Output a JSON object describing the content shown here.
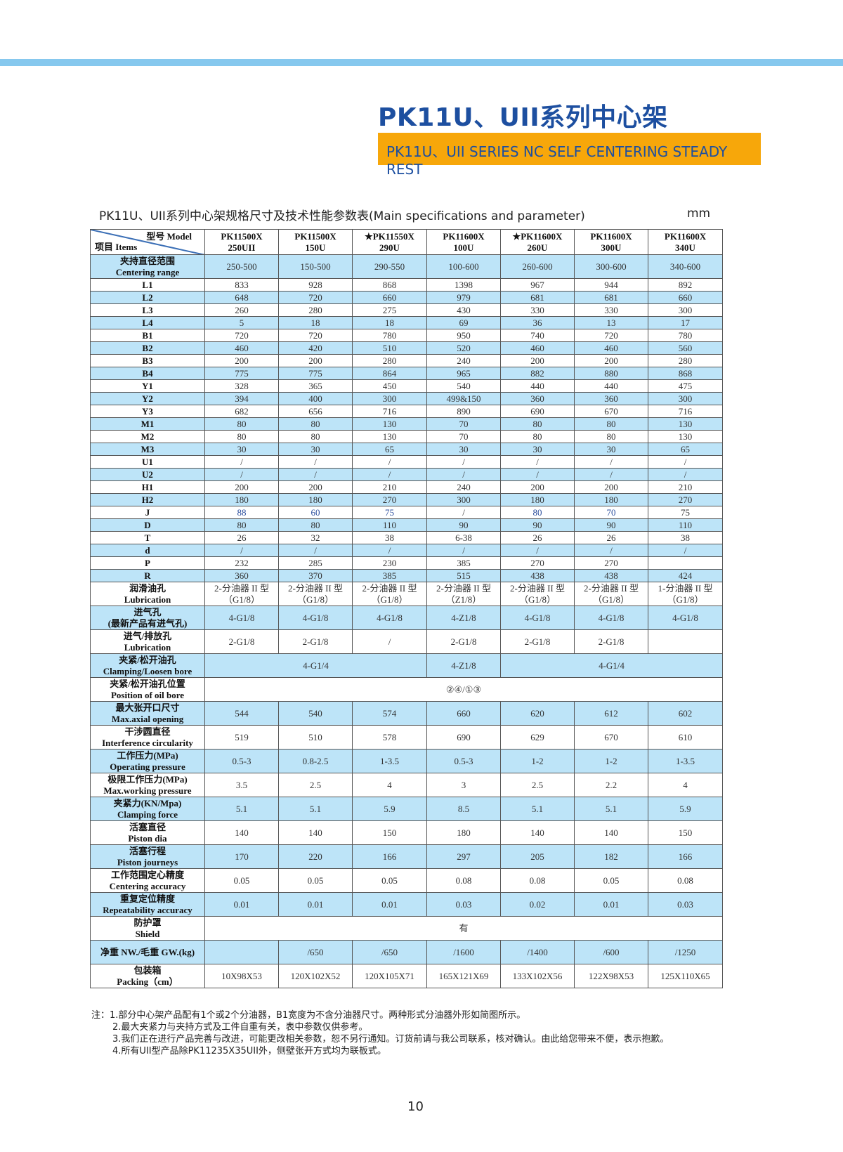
{
  "header": {
    "title": "PK11U、UII系列中心架",
    "subtitle": "PK11U、UII SERIES NC SELF CENTERING STEADY REST",
    "band_color": "#86c8ee",
    "accent_color": "#f7a70a",
    "title_color": "#1d4fa0"
  },
  "table_caption": "PK11U、UII系列中心架规格尺寸及技术性能参数表(Main specifications and parameter)",
  "unit": "mm",
  "table": {
    "corner_model": "型号 Model",
    "corner_items": "项目 Items",
    "models": [
      [
        "PK11500X",
        "250UII"
      ],
      [
        "PK11500X",
        "150U"
      ],
      [
        "★PK11550X",
        "290U"
      ],
      [
        "PK11600X",
        "100U"
      ],
      [
        "★PK11600X",
        "260U"
      ],
      [
        "PK11600X",
        "300U"
      ],
      [
        "PK11600X",
        "340U"
      ]
    ],
    "rows": [
      {
        "label": [
          "夹持直径范围",
          "Centering range"
        ],
        "values": [
          "250-500",
          "150-500",
          "290-550",
          "100-600",
          "260-600",
          "300-600",
          "340-600"
        ]
      },
      {
        "label": [
          "L1"
        ],
        "values": [
          "833",
          "928",
          "868",
          "1398",
          "967",
          "944",
          "892"
        ]
      },
      {
        "label": [
          "L2"
        ],
        "values": [
          "648",
          "720",
          "660",
          "979",
          "681",
          "681",
          "660"
        ]
      },
      {
        "label": [
          "L3"
        ],
        "values": [
          "260",
          "280",
          "275",
          "430",
          "330",
          "330",
          "300"
        ]
      },
      {
        "label": [
          "L4"
        ],
        "values": [
          "5",
          "18",
          "18",
          "69",
          "36",
          "13",
          "17"
        ]
      },
      {
        "label": [
          "B1"
        ],
        "values": [
          "720",
          "720",
          "780",
          "950",
          "740",
          "720",
          "780"
        ]
      },
      {
        "label": [
          "B2"
        ],
        "values": [
          "460",
          "420",
          "510",
          "520",
          "460",
          "460",
          "560"
        ]
      },
      {
        "label": [
          "B3"
        ],
        "values": [
          "200",
          "200",
          "280",
          "240",
          "200",
          "200",
          "280"
        ]
      },
      {
        "label": [
          "B4"
        ],
        "values": [
          "775",
          "775",
          "864",
          "965",
          "882",
          "880",
          "868"
        ]
      },
      {
        "label": [
          "Y1"
        ],
        "values": [
          "328",
          "365",
          "450",
          "540",
          "440",
          "440",
          "475"
        ]
      },
      {
        "label": [
          "Y2"
        ],
        "values": [
          "394",
          "400",
          "300",
          "499&150",
          "360",
          "360",
          "300"
        ]
      },
      {
        "label": [
          "Y3"
        ],
        "values": [
          "682",
          "656",
          "716",
          "890",
          "690",
          "670",
          "716"
        ]
      },
      {
        "label": [
          "M1"
        ],
        "values": [
          "80",
          "80",
          "130",
          "70",
          "80",
          "80",
          "130"
        ]
      },
      {
        "label": [
          "M2"
        ],
        "values": [
          "80",
          "80",
          "130",
          "70",
          "80",
          "80",
          "130"
        ]
      },
      {
        "label": [
          "M3"
        ],
        "values": [
          "30",
          "30",
          "65",
          "30",
          "30",
          "30",
          "65"
        ]
      },
      {
        "label": [
          "U1"
        ],
        "values": [
          "/",
          "/",
          "/",
          "/",
          "/",
          "/",
          "/"
        ]
      },
      {
        "label": [
          "U2"
        ],
        "values": [
          "/",
          "/",
          "/",
          "/",
          "/",
          "/",
          "/"
        ]
      },
      {
        "label": [
          "H1"
        ],
        "values": [
          "200",
          "200",
          "210",
          "240",
          "200",
          "200",
          "210"
        ]
      },
      {
        "label": [
          "H2"
        ],
        "values": [
          "180",
          "180",
          "270",
          "300",
          "180",
          "180",
          "270"
        ]
      },
      {
        "label": [
          "J"
        ],
        "values": [
          "88",
          "60",
          "75",
          "/",
          "80",
          "70",
          "75"
        ],
        "accent": [
          true,
          true,
          true,
          false,
          true,
          true,
          false
        ],
        "label_accent": true
      },
      {
        "label": [
          "D"
        ],
        "values": [
          "80",
          "80",
          "110",
          "90",
          "90",
          "90",
          "110"
        ]
      },
      {
        "label": [
          "T"
        ],
        "values": [
          "26",
          "32",
          "38",
          "6-38",
          "26",
          "26",
          "38"
        ]
      },
      {
        "label": [
          "d"
        ],
        "values": [
          "/",
          "/",
          "/",
          "/",
          "/",
          "/",
          "/"
        ]
      },
      {
        "label": [
          "P"
        ],
        "values": [
          "232",
          "285",
          "230",
          "385",
          "270",
          "270",
          ""
        ]
      },
      {
        "label": [
          "R"
        ],
        "values": [
          "360",
          "370",
          "385",
          "515",
          "438",
          "438",
          "424"
        ]
      },
      {
        "label": [
          "润滑油孔",
          "Lubrication"
        ],
        "values": [
          [
            "2-分油器 II 型",
            "（G1/8）"
          ],
          [
            "2-分油器 II 型",
            "（G1/8）"
          ],
          [
            "2-分油器 II 型",
            "（G1/8）"
          ],
          [
            "2-分油器 II 型",
            "（Z1/8）"
          ],
          [
            "2-分油器 II 型",
            "（G1/8）"
          ],
          [
            "2-分油器 II 型",
            "（G1/8）"
          ],
          [
            "1-分油器 II 型",
            "（G1/8）"
          ]
        ]
      },
      {
        "label": [
          "进气孔",
          "(最新产品有进气孔)"
        ],
        "values": [
          "4-G1/8",
          "4-G1/8",
          "4-G1/8",
          "4-Z1/8",
          "4-G1/8",
          "4-G1/8",
          "4-G1/8"
        ]
      },
      {
        "label": [
          "进气/排放孔",
          "Lubrication"
        ],
        "values": [
          "2-G1/8",
          "2-G1/8",
          "/",
          "2-G1/8",
          "2-G1/8",
          "2-G1/8",
          ""
        ]
      },
      {
        "label": [
          "夹紧/松开油孔",
          "Clamping/Loosen bore"
        ],
        "values": [
          "4-G1/4",
          "4-Z1/8",
          "4-G1/4"
        ],
        "spans": [
          3,
          1,
          3
        ]
      },
      {
        "label": [
          "夹紧/松开油孔位置",
          "Position of oil bore"
        ],
        "values": [
          "②④/①③"
        ],
        "spans": [
          7
        ]
      },
      {
        "label": [
          "最大张开口尺寸",
          "Max.axial opening"
        ],
        "values": [
          "544",
          "540",
          "574",
          "660",
          "620",
          "612",
          "602"
        ]
      },
      {
        "label": [
          "干涉圆直径",
          "Interference circularity"
        ],
        "values": [
          "519",
          "510",
          "578",
          "690",
          "629",
          "670",
          "610"
        ]
      },
      {
        "label": [
          "工作压力(MPa)",
          "Operating pressure"
        ],
        "values": [
          "0.5-3",
          "0.8-2.5",
          "1-3.5",
          "0.5-3",
          "1-2",
          "1-2",
          "1-3.5"
        ]
      },
      {
        "label": [
          "极限工作压力(MPa)",
          "Max.working pressure"
        ],
        "values": [
          "3.5",
          "2.5",
          "4",
          "3",
          "2.5",
          "2.2",
          "4"
        ]
      },
      {
        "label": [
          "夹紧力(KN/Mpa)",
          "Clamping force"
        ],
        "values": [
          "5.1",
          "5.1",
          "5.9",
          "8.5",
          "5.1",
          "5.1",
          "5.9"
        ]
      },
      {
        "label": [
          "活塞直径",
          "Piston dia"
        ],
        "values": [
          "140",
          "140",
          "150",
          "180",
          "140",
          "140",
          "150"
        ]
      },
      {
        "label": [
          "活塞行程",
          "Piston journeys"
        ],
        "values": [
          "170",
          "220",
          "166",
          "297",
          "205",
          "182",
          "166"
        ]
      },
      {
        "label": [
          "工作范围定心精度",
          "Centering accuracy"
        ],
        "values": [
          "0.05",
          "0.05",
          "0.05",
          "0.08",
          "0.08",
          "0.05",
          "0.08"
        ]
      },
      {
        "label": [
          "重复定位精度",
          "Repeatability accuracy"
        ],
        "values": [
          "0.01",
          "0.01",
          "0.01",
          "0.03",
          "0.02",
          "0.01",
          "0.03"
        ]
      },
      {
        "label": [
          "防护罩",
          "Shield"
        ],
        "values": [
          "有"
        ],
        "spans": [
          7
        ]
      },
      {
        "label": [
          "净重 NW./毛重 GW.(kg)"
        ],
        "values": [
          "",
          "/650",
          "/650",
          "/1600",
          "/1400",
          "/600",
          "/1250"
        ],
        "double": true
      },
      {
        "label": [
          "包装箱",
          "Packing（cm）"
        ],
        "values": [
          "10X98X53",
          "120X102X52",
          "120X105X71",
          "165X121X69",
          "133X102X56",
          "122X98X53",
          "125X110X65"
        ]
      }
    ]
  },
  "notes": {
    "prefix": "注：",
    "items": [
      "1.部分中心架产品配有1个或2个分油器，B1宽度为不含分油器尺寸。两种形式分油器外形如简图所示。",
      "2.最大夹紧力与夹持方式及工件自重有关，表中参数仅供参考。",
      "3.我们正在进行产品完善与改进，可能更改相关参数，恕不另行通知。订货前请与我公司联系，核对确认。由此给您带来不便，表示抱歉。",
      "4.所有UII型产品除PK11235X35UII外，侧壁张开方式均为联板式。"
    ]
  },
  "page_number": "10"
}
